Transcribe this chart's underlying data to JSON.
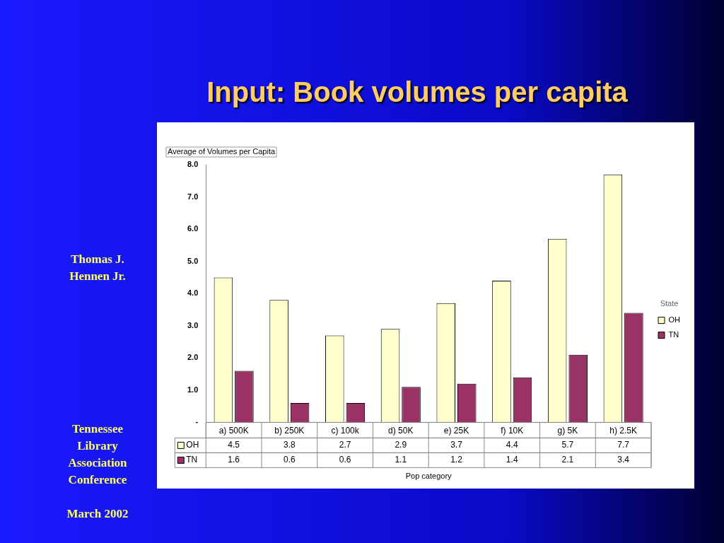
{
  "chart_data": {
    "type": "bar",
    "title": "Input: Book volumes per capita",
    "ylabel": "Average of Volumes per Capita",
    "xlabel": "Pop category",
    "legend_title": "State",
    "categories": [
      "a) 500K",
      "b) 250K",
      "c) 100k",
      "d) 50K",
      "e) 25K",
      "f) 10K",
      "g) 5K",
      "h) 2.5K"
    ],
    "series": [
      {
        "name": "OH",
        "color": "#ffffcc",
        "values": [
          4.5,
          3.8,
          2.7,
          2.9,
          3.7,
          4.4,
          5.7,
          7.7
        ]
      },
      {
        "name": "TN",
        "color": "#993366",
        "values": [
          1.6,
          0.6,
          0.6,
          1.1,
          1.2,
          1.4,
          2.1,
          3.4
        ]
      }
    ],
    "ylim": [
      0,
      8
    ],
    "yticks": [
      {
        "value": 0,
        "label": "-"
      },
      {
        "value": 1,
        "label": "1.0"
      },
      {
        "value": 2,
        "label": "2.0"
      },
      {
        "value": 3,
        "label": "3.0"
      },
      {
        "value": 4,
        "label": "4.0"
      },
      {
        "value": 5,
        "label": "5.0"
      },
      {
        "value": 6,
        "label": "6.0"
      },
      {
        "value": 7,
        "label": "7.0"
      },
      {
        "value": 8,
        "label": "8.0"
      }
    ],
    "legend": "right",
    "data_labels": true,
    "annotations": [
      "Thomas J. Hennen Jr.",
      "Tennessee Library Association Conference",
      "March 2002"
    ]
  }
}
